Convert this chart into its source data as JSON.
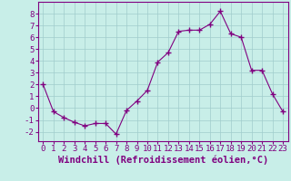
{
  "x": [
    0,
    1,
    2,
    3,
    4,
    5,
    6,
    7,
    8,
    9,
    10,
    11,
    12,
    13,
    14,
    15,
    16,
    17,
    18,
    19,
    20,
    21,
    22,
    23
  ],
  "y": [
    2,
    -0.3,
    -0.8,
    -1.2,
    -1.5,
    -1.3,
    -1.3,
    -2.2,
    -0.2,
    0.6,
    1.5,
    3.9,
    4.7,
    6.5,
    6.6,
    6.6,
    7.1,
    8.2,
    6.3,
    6.0,
    3.2,
    3.2,
    1.2,
    -0.3
  ],
  "line_color": "#800080",
  "marker": "+",
  "marker_color": "#800080",
  "bg_color": "#c8eee8",
  "grid_color": "#a0cccc",
  "xlabel": "Windchill (Refroidissement éolien,°C)",
  "ylabel": "",
  "xlim": [
    -0.5,
    23.5
  ],
  "ylim": [
    -2.8,
    9.0
  ],
  "yticks": [
    -2,
    -1,
    0,
    1,
    2,
    3,
    4,
    5,
    6,
    7,
    8
  ],
  "xticks": [
    0,
    1,
    2,
    3,
    4,
    5,
    6,
    7,
    8,
    9,
    10,
    11,
    12,
    13,
    14,
    15,
    16,
    17,
    18,
    19,
    20,
    21,
    22,
    23
  ],
  "xtick_labels": [
    "0",
    "1",
    "2",
    "3",
    "4",
    "5",
    "6",
    "7",
    "8",
    "9",
    "10",
    "11",
    "12",
    "13",
    "14",
    "15",
    "16",
    "17",
    "18",
    "19",
    "20",
    "21",
    "22",
    "23"
  ],
  "label_color": "#800080",
  "tick_color": "#800080",
  "axis_color": "#800080",
  "font_size": 6.5,
  "xlabel_fontsize": 7.5
}
